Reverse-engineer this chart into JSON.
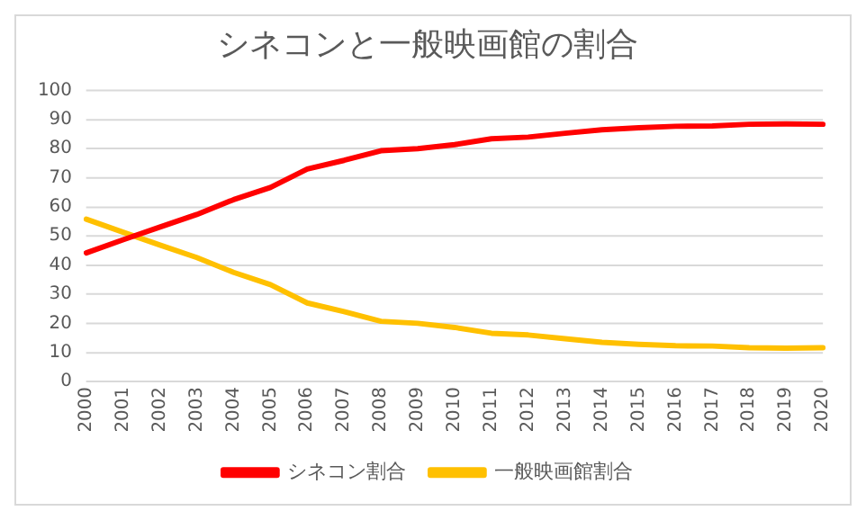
{
  "chart_data": {
    "type": "line",
    "title": "シネコンと一般映画館の割合",
    "categories": [
      "2000",
      "2001",
      "2002",
      "2003",
      "2004",
      "2005",
      "2006",
      "2007",
      "2008",
      "2009",
      "2010",
      "2011",
      "2012",
      "2013",
      "2014",
      "2015",
      "2016",
      "2017",
      "2018",
      "2019",
      "2020"
    ],
    "series": [
      {
        "name": "シネコン割合",
        "color": "#ff0000",
        "values": [
          44.2,
          48.7,
          53.1,
          57.4,
          62.5,
          66.7,
          73,
          76,
          79.3,
          80,
          81.4,
          83.4,
          84,
          85.3,
          86.5,
          87.2,
          87.7,
          87.8,
          88.4,
          88.5,
          88.4
        ]
      },
      {
        "name": "一般映画館割合",
        "color": "#ffc000",
        "values": [
          55.8,
          51.3,
          46.9,
          42.6,
          37.5,
          33.3,
          27,
          24,
          20.7,
          20,
          18.6,
          16.6,
          16,
          14.7,
          13.5,
          12.8,
          12.3,
          12.2,
          11.6,
          11.5,
          11.6
        ]
      }
    ],
    "ylim": [
      0,
      100
    ],
    "yticks": [
      0,
      10,
      20,
      30,
      40,
      50,
      60,
      70,
      80,
      90,
      100
    ],
    "grid": "y",
    "legend": "bottom",
    "marker": "none",
    "line_style": "solid"
  }
}
